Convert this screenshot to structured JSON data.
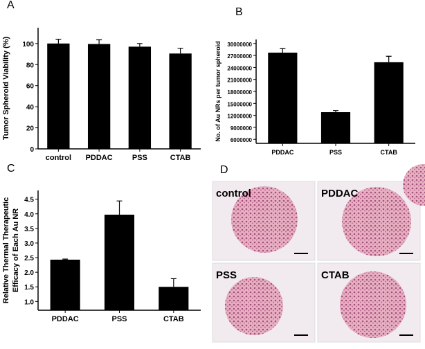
{
  "chart_data": [
    {
      "type": "bar",
      "panel_label": "A",
      "ylabel": "Tumor Spheroid Viability (%)",
      "categories": [
        "control",
        "PDDAC",
        "PSS",
        "CTAB"
      ],
      "values": [
        100,
        99.5,
        97,
        90.5
      ],
      "errors": [
        4,
        4,
        3,
        5
      ],
      "color": "#000000",
      "ylim": [
        0,
        115
      ],
      "yticks": [
        0,
        20,
        40,
        60,
        80,
        100
      ]
    },
    {
      "type": "bar",
      "panel_label": "B",
      "ylabel": "No. of Au NRs per tumor spheroid",
      "categories": [
        "PDDAC",
        "PSS",
        "CTAB"
      ],
      "values": [
        27700000,
        12800000,
        25300000
      ],
      "errors": [
        1000000,
        400000,
        1500000
      ],
      "color": "#000000",
      "ylim": [
        5000000,
        31000000
      ],
      "yticks": [
        6000000,
        9000000,
        12000000,
        15000000,
        18000000,
        21000000,
        24000000,
        27000000,
        30000000
      ]
    },
    {
      "type": "bar",
      "panel_label": "C",
      "ylabel": [
        "Relative Thermal Therapeutic",
        "Efficacy of Each Au NR"
      ],
      "categories": [
        "PDDAC",
        "PSS",
        "CTAB"
      ],
      "values": [
        2.43,
        3.97,
        1.5
      ],
      "errors": [
        0.02,
        0.47,
        0.28
      ],
      "color": "#000000",
      "ylim": [
        0.7,
        4.8
      ],
      "yticks": [
        {
          "value": 1,
          "label": "1.0"
        },
        1.5,
        {
          "value": 2,
          "label": "2.0"
        },
        2.5,
        {
          "value": 3,
          "label": "3.0"
        },
        3.5,
        {
          "value": 4,
          "label": "4.0"
        },
        4.5
      ]
    }
  ],
  "micrographs": {
    "panel_label": "D",
    "images": [
      {
        "label": "control"
      },
      {
        "label": "PDDAC"
      },
      {
        "label": "PSS"
      },
      {
        "label": "CTAB"
      }
    ]
  }
}
